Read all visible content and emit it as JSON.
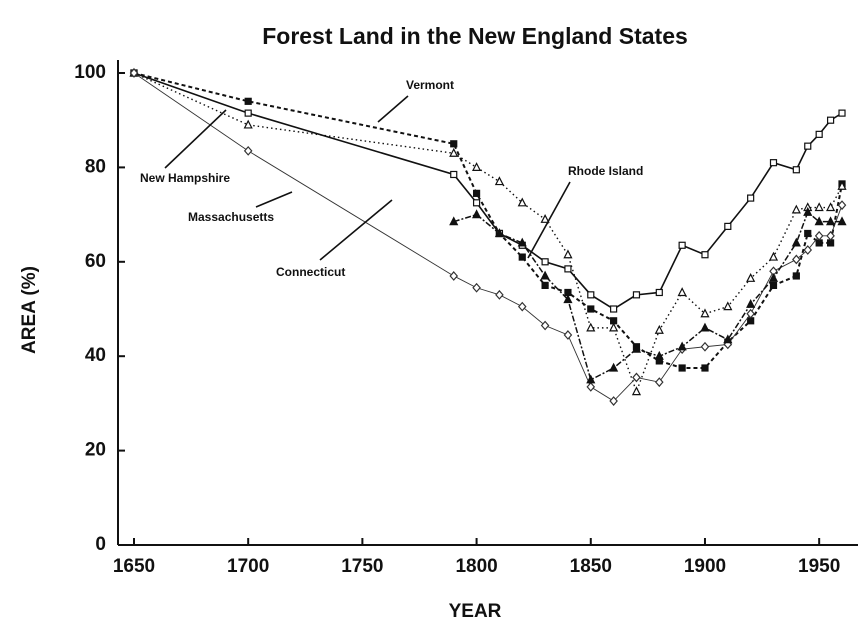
{
  "chart_data": {
    "type": "line",
    "title": "Forest Land in the New England States",
    "x_label": "YEAR",
    "y_label": "AREA (%)",
    "x": [
      1650,
      1700,
      1790,
      1800,
      1810,
      1820,
      1830,
      1840,
      1850,
      1860,
      1870,
      1880,
      1890,
      1900,
      1910,
      1920,
      1930,
      1940,
      1945,
      1950,
      1955,
      1960
    ],
    "series": [
      {
        "name": "Vermont",
        "color": "#111111",
        "marker": "square-filled",
        "line_style": "dashed",
        "values": [
          100,
          94,
          85,
          74.5,
          66,
          61,
          55,
          53.5,
          50,
          47.5,
          42,
          39,
          37.5,
          37.5,
          43,
          47.5,
          55,
          57,
          66,
          64,
          64,
          76.5
        ]
      },
      {
        "name": "New Hampshire",
        "color": "#111111",
        "marker": "triangle-open",
        "line_style": "dotted",
        "values": [
          100,
          89,
          83,
          80,
          77,
          72.5,
          69,
          61.5,
          46,
          46,
          32.5,
          45.5,
          53.5,
          49,
          50.5,
          56.5,
          61,
          71,
          71.5,
          71.5,
          71.5,
          76
        ]
      },
      {
        "name": "Massachusetts",
        "color": "#111111",
        "marker": "square-open",
        "line_style": "solid",
        "values": [
          100,
          91.5,
          78.5,
          72.5,
          66,
          63.5,
          60,
          58.5,
          53,
          50,
          53,
          53.5,
          63.5,
          61.5,
          67.5,
          73.5,
          81,
          79.5,
          84.5,
          87,
          90,
          91.5
        ]
      },
      {
        "name": "Connecticut",
        "color": "#333333",
        "marker": "diamond-open",
        "line_style": "thin",
        "values": [
          100,
          83.5,
          57,
          54.5,
          53,
          50.5,
          46.5,
          44.5,
          33.5,
          30.5,
          35.5,
          34.5,
          41.5,
          42,
          42.5,
          49,
          58,
          60.5,
          62.5,
          65.5,
          65.5,
          72
        ]
      },
      {
        "name": "Rhode Island",
        "color": "#111111",
        "marker": "triangle-filled",
        "line_style": "dashdot",
        "values": [
          null,
          null,
          68.5,
          70,
          66,
          64,
          57,
          52,
          35,
          37.5,
          41.5,
          40,
          42,
          46,
          43.5,
          51,
          56.5,
          64,
          70.5,
          68.5,
          68.5,
          68.5
        ]
      }
    ],
    "xlim": [
      1643,
      1967
    ],
    "xticks": [
      1650,
      1700,
      1750,
      1800,
      1850,
      1900,
      1950
    ],
    "ylim": [
      0,
      100
    ],
    "yticks": [
      0,
      20,
      40,
      60,
      80,
      100
    ]
  }
}
